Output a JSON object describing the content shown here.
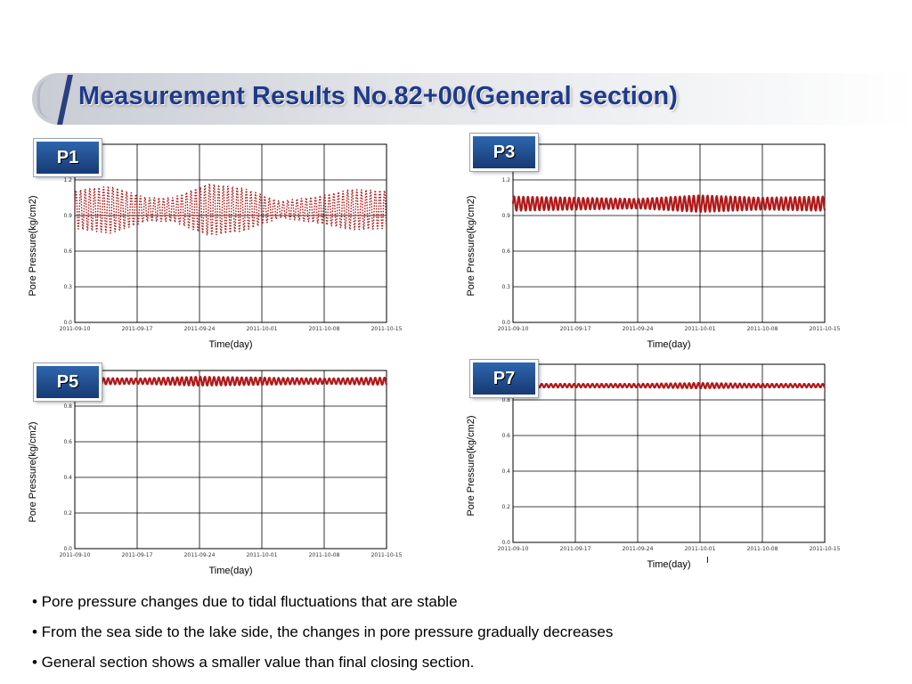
{
  "page": {
    "title": "Measurement Results No.82+00(General section)"
  },
  "colors": {
    "series": "#b01919",
    "title": "#1f3a8a",
    "tag": "#1f4f95"
  },
  "notes": [
    "• Pore pressure changes due to tidal fluctuations that are stable",
    "• From the sea side to the lake side, the changes in pore pressure gradually decreases",
    "• General section shows a smaller value than final closing section."
  ],
  "footer_mark": "I",
  "chart_data": [
    {
      "tag": "P1",
      "type": "line",
      "xlabel": "Time(day)",
      "ylabel": "Pore Pressure(kg/cm2)",
      "x_ticks": [
        "2011-09-10",
        "2011-09-17",
        "2011-09-24",
        "2011-10-01",
        "2011-10-08",
        "2011-10-15"
      ],
      "xlim": [
        "2011-09-10",
        "2011-10-15"
      ],
      "y_ticks": [
        "0.0",
        "0.3",
        "0.6",
        "0.9",
        "1.2"
      ],
      "ylim": [
        0,
        1.5
      ],
      "grid": true,
      "series": [
        {
          "color": "#b01919",
          "mean": 0.95,
          "cycle_days": 0.517,
          "amp_days": [
            "2011-09-10",
            "2011-09-14",
            "2011-09-18",
            "2011-09-21",
            "2011-09-25",
            "2011-09-29",
            "2011-10-03",
            "2011-10-07",
            "2011-10-11",
            "2011-10-15"
          ],
          "amplitude": [
            0.16,
            0.2,
            0.1,
            0.1,
            0.22,
            0.18,
            0.07,
            0.11,
            0.17,
            0.16
          ],
          "marker": "dot"
        }
      ]
    },
    {
      "tag": "P3",
      "type": "line",
      "xlabel": "Time(day)",
      "ylabel": "Pore Pressure(kg/cm2)",
      "x_ticks": [
        "2011-09-10",
        "2011-09-17",
        "2011-09-24",
        "2011-10-01",
        "2011-10-08",
        "2011-10-15"
      ],
      "xlim": [
        "2011-09-10",
        "2011-10-15"
      ],
      "y_ticks": [
        "0.0",
        "0.3",
        "0.6",
        "0.9",
        "1.2"
      ],
      "ylim": [
        0,
        1.5
      ],
      "grid": true,
      "series": [
        {
          "color": "#b01919",
          "mean": 1.0,
          "cycle_days": 0.517,
          "amp_days": [
            "2011-09-10",
            "2011-09-17",
            "2011-09-24",
            "2011-10-01",
            "2011-10-08",
            "2011-10-15"
          ],
          "amplitude": [
            0.06,
            0.05,
            0.04,
            0.07,
            0.05,
            0.06
          ]
        }
      ]
    },
    {
      "tag": "P5",
      "type": "line",
      "xlabel": "Time(day)",
      "ylabel": "Pore Pressure(kg/cm2)",
      "x_ticks": [
        "2011-09-10",
        "2011-09-17",
        "2011-09-24",
        "2011-10-01",
        "2011-10-08",
        "2011-10-15"
      ],
      "xlim": [
        "2011-09-10",
        "2011-10-15"
      ],
      "y_ticks": [
        "0.0",
        "0.2",
        "0.4",
        "0.6",
        "0.8"
      ],
      "ylim": [
        0,
        1.0
      ],
      "grid": true,
      "series": [
        {
          "color": "#b01919",
          "mean": 0.94,
          "cycle_days": 0.517,
          "amp_days": [
            "2011-09-10",
            "2011-09-17",
            "2011-09-24",
            "2011-10-01",
            "2011-10-08",
            "2011-10-15"
          ],
          "amplitude": [
            0.02,
            0.015,
            0.025,
            0.02,
            0.015,
            0.02
          ]
        }
      ]
    },
    {
      "tag": "P7",
      "type": "line",
      "xlabel": "Time(day)",
      "ylabel": "Pore Pressure(kg/cm2)",
      "x_ticks": [
        "2011-09-10",
        "2011-09-17",
        "2011-09-24",
        "2011-10-01",
        "2011-10-08",
        "2011-10-15"
      ],
      "xlim": [
        "2011-09-10",
        "2011-10-15"
      ],
      "y_ticks": [
        "0.0",
        "0.2",
        "0.4",
        "0.6",
        "0.8"
      ],
      "ylim": [
        0,
        1.0
      ],
      "grid": true,
      "series": [
        {
          "color": "#b01919",
          "mean": 0.88,
          "cycle_days": 0.517,
          "amp_days": [
            "2011-09-10",
            "2011-09-17",
            "2011-09-24",
            "2011-10-01",
            "2011-10-08",
            "2011-10-15"
          ],
          "amplitude": [
            0.01,
            0.01,
            0.01,
            0.015,
            0.01,
            0.01
          ]
        }
      ]
    }
  ]
}
